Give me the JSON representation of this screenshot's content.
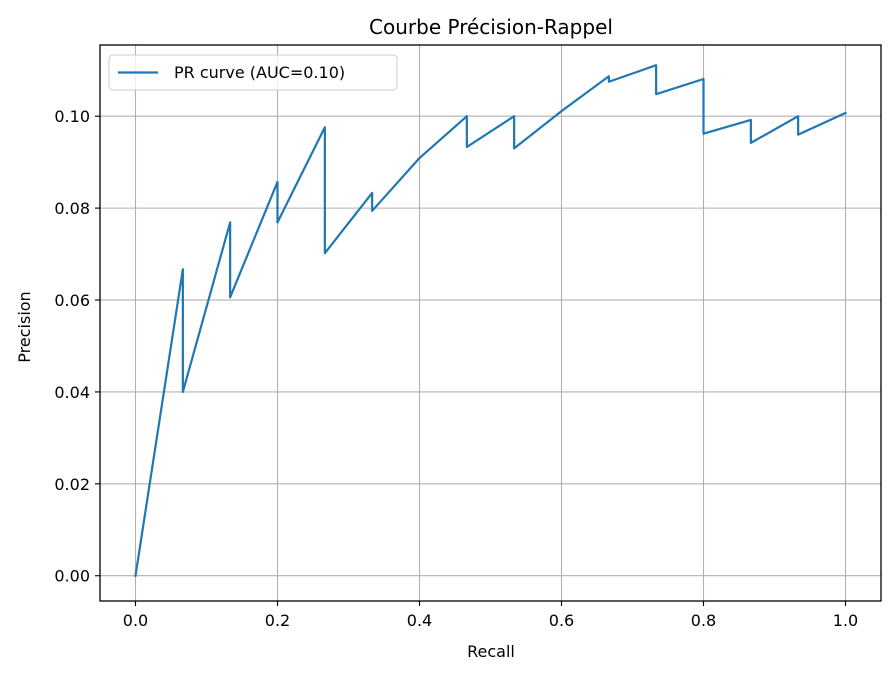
{
  "chart_data": {
    "type": "line",
    "title": "Courbe Précision-Rappel",
    "xlabel": "Recall",
    "ylabel": "Precision",
    "xlim": [
      -0.05,
      1.05
    ],
    "ylim": [
      -0.0055,
      0.1155
    ],
    "xticks": [
      0.0,
      0.2,
      0.4,
      0.6,
      0.8,
      1.0
    ],
    "xtick_labels": [
      "0.0",
      "0.2",
      "0.4",
      "0.6",
      "0.8",
      "1.0"
    ],
    "yticks": [
      0.0,
      0.02,
      0.04,
      0.06,
      0.08,
      0.1
    ],
    "ytick_labels": [
      "0.00",
      "0.02",
      "0.04",
      "0.06",
      "0.08",
      "0.10"
    ],
    "grid": true,
    "legend_position": "top-left",
    "series": [
      {
        "name": "PR curve (AUC=0.10)",
        "color": "#1f77b4",
        "x": [
          0.0,
          0.0667,
          0.0667,
          0.1333,
          0.1333,
          0.2,
          0.2,
          0.2667,
          0.2667,
          0.3333,
          0.3333,
          0.4,
          0.4667,
          0.4667,
          0.5333,
          0.5333,
          0.6,
          0.6667,
          0.6667,
          0.7333,
          0.7333,
          0.8,
          0.8,
          0.8667,
          0.8667,
          0.9333,
          0.9333,
          1.0
        ],
        "y": [
          0.0,
          0.0667,
          0.04,
          0.0769,
          0.0606,
          0.0857,
          0.0769,
          0.0976,
          0.0702,
          0.0833,
          0.0794,
          0.0909,
          0.1,
          0.0933,
          0.1,
          0.093,
          0.1011,
          0.1087,
          0.1075,
          0.1111,
          0.1048,
          0.1081,
          0.0962,
          0.0992,
          0.0942,
          0.1,
          0.096,
          0.1007
        ]
      }
    ]
  }
}
